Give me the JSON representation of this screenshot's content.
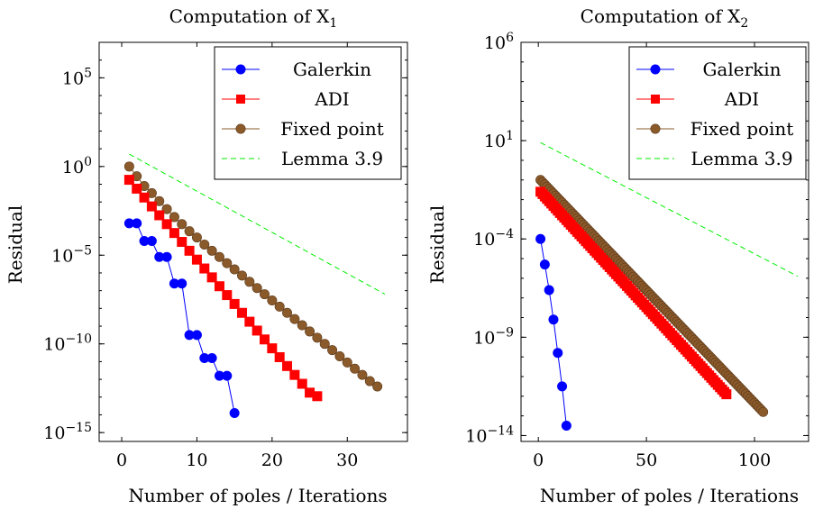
{
  "chart_data": [
    {
      "type": "line",
      "title": "Computation of X",
      "title_subscript": "1",
      "xlabel": "Number of poles / Iterations",
      "ylabel": "Residual",
      "xlim": [
        -3,
        38
      ],
      "ylim_log10": [
        -15.5,
        7
      ],
      "yscale": "log",
      "x_ticks": [
        0,
        10,
        20,
        30
      ],
      "x_tick_labels": [
        "0",
        "10",
        "20",
        "30"
      ],
      "y_ticks": [
        5,
        0,
        -5,
        -10,
        -15
      ],
      "y_tick_base": "10",
      "y_tick_exponents": [
        "5",
        "0",
        "−5",
        "−10",
        "−15"
      ],
      "grid": false,
      "legend_position": "top-right",
      "series": [
        {
          "name": "Galerkin",
          "color": "#0000ff",
          "marker": "circle",
          "line_style": "solid",
          "x": [
            1,
            2,
            3,
            4,
            5,
            6,
            7,
            8,
            9,
            10,
            11,
            12,
            13,
            14,
            15
          ],
          "log10_y": [
            -3.2,
            -3.2,
            -4.2,
            -4.2,
            -5.1,
            -5.1,
            -6.6,
            -6.6,
            -9.5,
            -9.5,
            -10.8,
            -10.8,
            -11.8,
            -11.8,
            -13.9
          ]
        },
        {
          "name": "ADI",
          "color": "#ff0000",
          "marker": "square",
          "line_style": "solid",
          "x": [
            1,
            2,
            3,
            4,
            5,
            6,
            7,
            8,
            9,
            10,
            11,
            12,
            13,
            14,
            15,
            16,
            17,
            18,
            19,
            20,
            21,
            22,
            23,
            24,
            25,
            26
          ],
          "log10_y": [
            -0.75,
            -1.25,
            -1.75,
            -2.25,
            -2.75,
            -3.25,
            -3.75,
            -4.25,
            -4.75,
            -5.25,
            -5.75,
            -6.25,
            -6.75,
            -7.25,
            -7.75,
            -8.25,
            -8.75,
            -9.25,
            -9.75,
            -10.25,
            -10.75,
            -11.25,
            -11.75,
            -12.25,
            -12.75,
            -12.95
          ]
        },
        {
          "name": "Fixed point",
          "color": "#8b5a2b",
          "marker": "circle",
          "line_style": "solid",
          "x": [
            1,
            2,
            3,
            4,
            5,
            6,
            7,
            8,
            9,
            10,
            11,
            12,
            13,
            14,
            15,
            16,
            17,
            18,
            19,
            20,
            21,
            22,
            23,
            24,
            25,
            26,
            27,
            28,
            29,
            30,
            31,
            32,
            33,
            34
          ],
          "log10_y": [
            0.0,
            -0.55,
            -1.1,
            -1.5,
            -1.95,
            -2.4,
            -2.85,
            -3.25,
            -3.65,
            -4.0,
            -4.4,
            -4.75,
            -5.1,
            -5.45,
            -5.8,
            -6.15,
            -6.5,
            -6.85,
            -7.2,
            -7.55,
            -7.9,
            -8.25,
            -8.6,
            -8.95,
            -9.3,
            -9.65,
            -10.0,
            -10.35,
            -10.7,
            -11.05,
            -11.4,
            -11.75,
            -12.1,
            -12.4
          ]
        },
        {
          "name": "Lemma 3.9",
          "color": "#00ee00",
          "marker": "none",
          "line_style": "dashed",
          "x": [
            1,
            35
          ],
          "log10_y": [
            0.7,
            -7.2
          ]
        }
      ]
    },
    {
      "type": "line",
      "title": "Computation of X",
      "title_subscript": "2",
      "xlabel": "Number of poles / Iterations",
      "ylabel": "Residual",
      "xlim": [
        -8,
        125
      ],
      "ylim_log10": [
        -14.3,
        6
      ],
      "yscale": "log",
      "x_ticks": [
        0,
        50,
        100
      ],
      "x_tick_labels": [
        "0",
        "50",
        "100"
      ],
      "y_ticks": [
        6,
        1,
        -4,
        -9,
        -14
      ],
      "y_tick_base": "10",
      "y_tick_exponents": [
        "6",
        "1",
        "−4",
        "−9",
        "−14"
      ],
      "grid": false,
      "legend_position": "top-right",
      "series": [
        {
          "name": "Galerkin",
          "color": "#0000ff",
          "marker": "circle",
          "line_style": "solid",
          "x": [
            1,
            3,
            5,
            7,
            9,
            11,
            13
          ],
          "log10_y": [
            -4.0,
            -5.3,
            -6.6,
            -8.1,
            -9.8,
            -11.5,
            -13.5
          ]
        },
        {
          "name": "ADI",
          "color": "#ff0000",
          "marker": "square",
          "line_style": "solid",
          "x_start": 1,
          "x_end": 87,
          "log10_y_start": -1.6,
          "log10_y_end": -11.9,
          "points": 87
        },
        {
          "name": "Fixed point",
          "color": "#8b5a2b",
          "marker": "circle",
          "line_style": "solid",
          "x_start": 1,
          "x_end": 104,
          "log10_y_start": -1.0,
          "log10_y_end": -12.8,
          "points": 104
        },
        {
          "name": "Lemma 3.9",
          "color": "#00ee00",
          "marker": "none",
          "line_style": "dashed",
          "x": [
            1,
            120
          ],
          "log10_y": [
            0.9,
            -5.9
          ]
        }
      ]
    }
  ]
}
